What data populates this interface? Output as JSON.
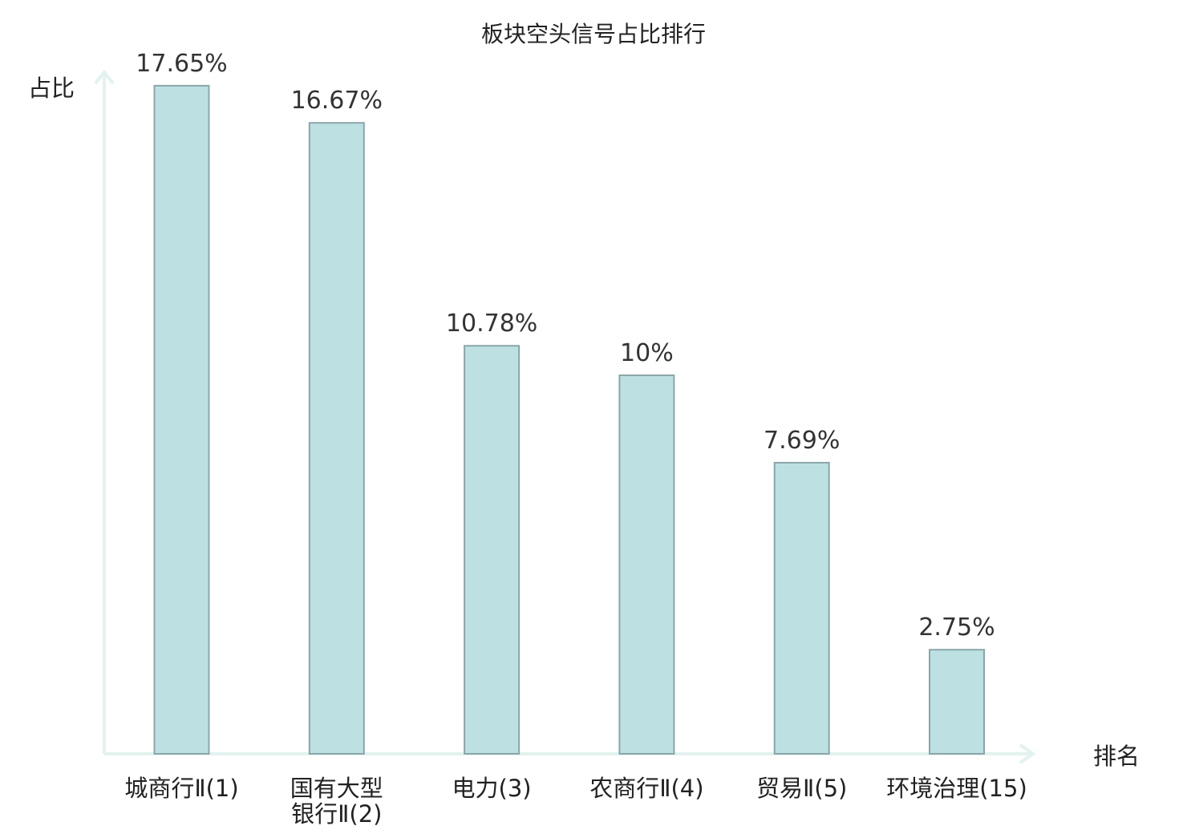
{
  "chart_data": {
    "type": "bar",
    "title": "板块空头信号占比排行",
    "ylabel": "占比",
    "xlabel": "排名",
    "ylim": [
      0,
      18
    ],
    "grid": false,
    "categories": [
      [
        "城商行Ⅱ(1)"
      ],
      [
        "国有大型",
        "银行Ⅱ(2)"
      ],
      [
        "电力(3)"
      ],
      [
        "农商行Ⅱ(4)"
      ],
      [
        "贸易Ⅱ(5)"
      ],
      [
        "环境治理(15)"
      ]
    ],
    "values": [
      17.65,
      16.67,
      10.78,
      10,
      7.69,
      2.75
    ],
    "value_labels": [
      "17.65%",
      "16.67%",
      "10.78%",
      "10%",
      "7.69%",
      "2.75%"
    ],
    "highlight_index": 5
  },
  "colors": {
    "bar_fill": "#bde0e2",
    "bar_stroke": "#8aa6a8",
    "axis": "#e2f2ef",
    "highlight_text": "#e01010",
    "text": "#222222"
  }
}
